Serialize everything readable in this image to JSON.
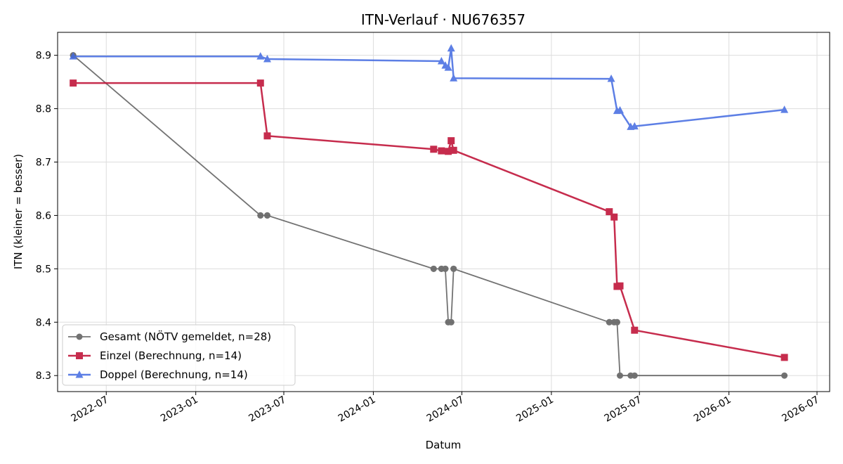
{
  "chart_data": {
    "type": "line",
    "title": "ITN-Verlauf · NU676357",
    "xlabel": "Datum",
    "ylabel": "ITN  (kleiner = besser)",
    "x_axis": "date",
    "xlim": [
      "2022-03-23",
      "2026-07-27"
    ],
    "ylim": [
      8.27,
      8.943
    ],
    "x_ticks": [
      "2022-07-01",
      "2023-01-01",
      "2023-07-01",
      "2024-01-01",
      "2024-07-01",
      "2025-01-01",
      "2025-07-01",
      "2026-01-01",
      "2026-07-01"
    ],
    "x_tick_labels": [
      "2022-07",
      "2023-01",
      "2023-07",
      "2024-01",
      "2024-07",
      "2025-01",
      "2025-07",
      "2026-01",
      "2026-07"
    ],
    "y_ticks": [
      8.3,
      8.4,
      8.5,
      8.6,
      8.7,
      8.8,
      8.9
    ],
    "y_tick_labels": [
      "8.3",
      "8.4",
      "8.5",
      "8.6",
      "8.7",
      "8.8",
      "8.9"
    ],
    "grid": true,
    "legend_position": "lower-left",
    "series": [
      {
        "name": "Gesamt (NÖTV gemeldet, n=28)",
        "color": "#444444",
        "marker": "circle",
        "points": [
          {
            "x": "2022-04-24",
            "y": 8.9
          },
          {
            "x": "2022-04-24",
            "y": 8.9
          },
          {
            "x": "2023-05-14",
            "y": 8.6
          },
          {
            "x": "2023-05-14",
            "y": 8.6
          },
          {
            "x": "2023-05-28",
            "y": 8.6
          },
          {
            "x": "2023-05-28",
            "y": 8.6
          },
          {
            "x": "2024-05-04",
            "y": 8.5
          },
          {
            "x": "2024-05-04",
            "y": 8.5
          },
          {
            "x": "2024-05-20",
            "y": 8.5
          },
          {
            "x": "2024-05-20",
            "y": 8.5
          },
          {
            "x": "2024-05-28",
            "y": 8.5
          },
          {
            "x": "2024-05-28",
            "y": 8.5
          },
          {
            "x": "2024-06-03",
            "y": 8.4
          },
          {
            "x": "2024-06-03",
            "y": 8.4
          },
          {
            "x": "2024-06-09",
            "y": 8.4
          },
          {
            "x": "2024-06-09",
            "y": 8.4
          },
          {
            "x": "2024-06-14",
            "y": 8.5
          },
          {
            "x": "2024-06-14",
            "y": 8.5
          },
          {
            "x": "2025-04-30",
            "y": 8.4
          },
          {
            "x": "2025-04-30",
            "y": 8.4
          },
          {
            "x": "2025-05-10",
            "y": 8.4
          },
          {
            "x": "2025-05-10",
            "y": 8.4
          },
          {
            "x": "2025-05-16",
            "y": 8.4
          },
          {
            "x": "2025-05-16",
            "y": 8.4
          },
          {
            "x": "2025-05-22",
            "y": 8.3
          },
          {
            "x": "2025-06-13",
            "y": 8.3
          },
          {
            "x": "2025-06-21",
            "y": 8.3
          },
          {
            "x": "2026-04-25",
            "y": 8.3
          }
        ]
      },
      {
        "name": "Einzel (Berechnung, n=14)",
        "color": "#c0163a",
        "marker": "square",
        "points": [
          {
            "x": "2022-04-24",
            "y": 8.848
          },
          {
            "x": "2023-05-14",
            "y": 8.848
          },
          {
            "x": "2023-05-28",
            "y": 8.749
          },
          {
            "x": "2024-05-04",
            "y": 8.724
          },
          {
            "x": "2024-05-20",
            "y": 8.721
          },
          {
            "x": "2024-06-03",
            "y": 8.72
          },
          {
            "x": "2024-06-09",
            "y": 8.74
          },
          {
            "x": "2024-06-14",
            "y": 8.722
          },
          {
            "x": "2025-04-30",
            "y": 8.607
          },
          {
            "x": "2025-05-10",
            "y": 8.597
          },
          {
            "x": "2025-05-16",
            "y": 8.467
          },
          {
            "x": "2025-05-22",
            "y": 8.468
          },
          {
            "x": "2025-06-21",
            "y": 8.385
          },
          {
            "x": "2026-04-25",
            "y": 8.334
          }
        ]
      },
      {
        "name": "Doppel (Berechnung, n=14)",
        "color": "#4169e1",
        "marker": "triangle",
        "points": [
          {
            "x": "2022-04-24",
            "y": 8.898
          },
          {
            "x": "2023-05-14",
            "y": 8.898
          },
          {
            "x": "2023-05-28",
            "y": 8.893
          },
          {
            "x": "2024-05-20",
            "y": 8.889
          },
          {
            "x": "2024-05-28",
            "y": 8.881
          },
          {
            "x": "2024-06-03",
            "y": 8.877
          },
          {
            "x": "2024-06-09",
            "y": 8.913
          },
          {
            "x": "2024-06-14",
            "y": 8.857
          },
          {
            "x": "2025-05-04",
            "y": 8.856
          },
          {
            "x": "2025-05-16",
            "y": 8.796
          },
          {
            "x": "2025-05-22",
            "y": 8.797
          },
          {
            "x": "2025-06-13",
            "y": 8.766
          },
          {
            "x": "2025-06-21",
            "y": 8.767
          },
          {
            "x": "2026-04-25",
            "y": 8.798
          }
        ]
      }
    ]
  }
}
